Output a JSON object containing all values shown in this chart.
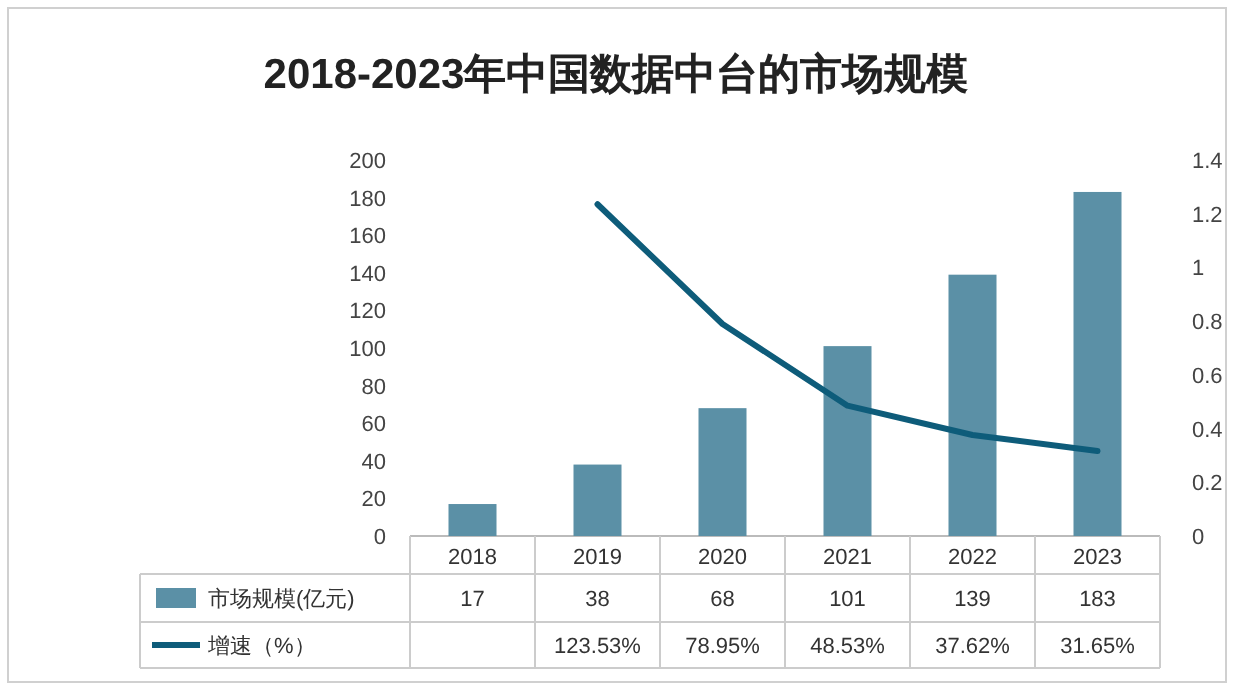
{
  "chart_data": {
    "type": "bar",
    "title": "2018-2023年中国数据中台的市场规模",
    "categories": [
      "2018",
      "2019",
      "2020",
      "2021",
      "2022",
      "2023"
    ],
    "series": [
      {
        "name": "市场规模(亿元)",
        "color": "#5b90a6",
        "values": [
          17,
          38,
          68,
          101,
          139,
          183
        ],
        "data_labels": true
      },
      {
        "name": "增速（%）",
        "type": "line",
        "axis": "y2",
        "color": "#0e5c7a",
        "values": [
          null,
          1.2353,
          0.7895,
          0.4853,
          0.3762,
          0.3165
        ],
        "value_labels": [
          null,
          "123.53%",
          "78.95%",
          "48.53%",
          "37.62%",
          "31.65%"
        ]
      }
    ],
    "ylim": [
      0,
      200
    ],
    "yticks": [
      0,
      20,
      40,
      60,
      80,
      100,
      120,
      140,
      160,
      180,
      200
    ],
    "y2lim": [
      0,
      1.4
    ],
    "y2ticks": [
      0,
      0.2,
      0.4,
      0.6,
      0.8,
      1,
      1.2,
      1.4
    ],
    "grid": false,
    "legend": "bottom",
    "line_style": "solid",
    "marker": "none"
  }
}
